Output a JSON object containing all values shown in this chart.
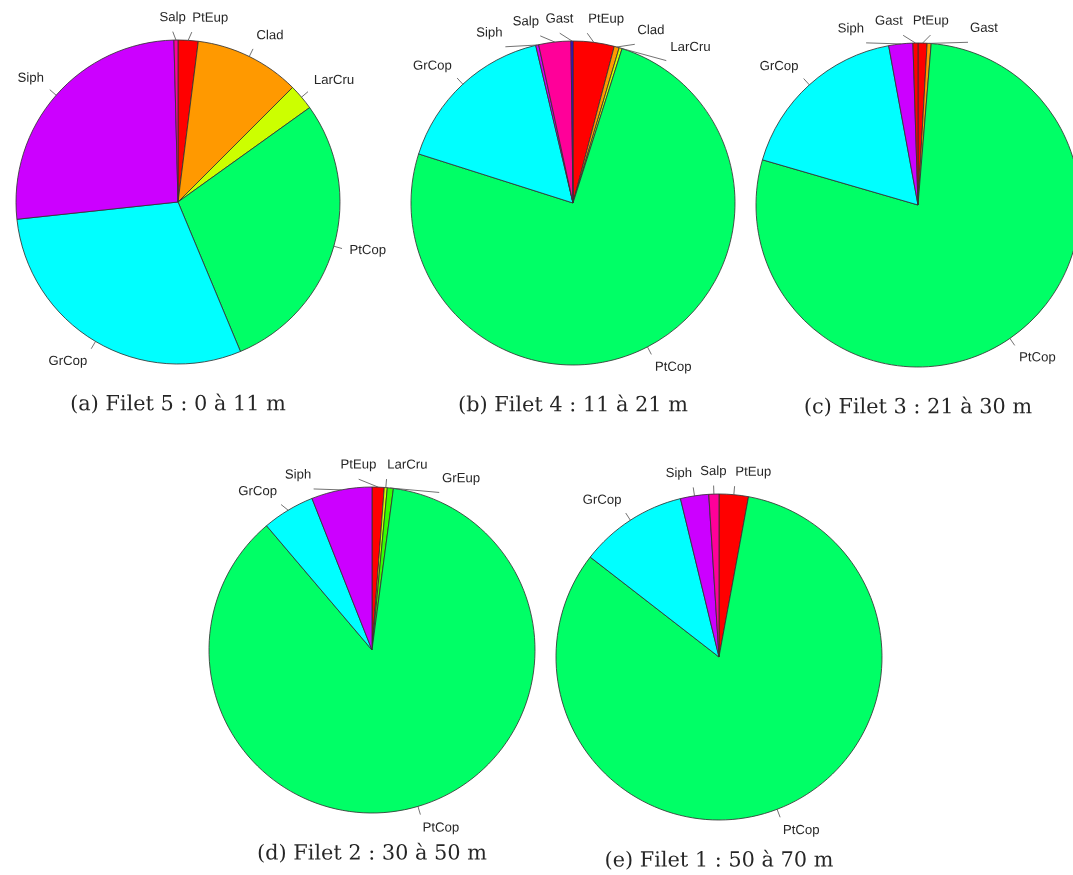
{
  "chart_data": [
    {
      "type": "pie",
      "title": "(a) Filet 5 : 0 à 11 m",
      "categories": [
        "PtEup",
        "Clad",
        "LarCru",
        "PtCop",
        "GrCop",
        "Siph",
        "Salp"
      ],
      "values": [
        2.0,
        10.5,
        2.6,
        28.6,
        29.6,
        26.3,
        0.4
      ],
      "colors": [
        "#ff0000",
        "#ff9900",
        "#ccff00",
        "#00ff66",
        "#00ffff",
        "#cc00ff",
        "#ff0099"
      ]
    },
    {
      "type": "pie",
      "title": "(b) Filet 4 : 11 à 21 m",
      "categories": [
        "PtEup",
        "Clad",
        "LarCru",
        "PtCop",
        "GrCop",
        "Siph",
        "Salp",
        "Gast"
      ],
      "values": [
        4.1,
        0.5,
        0.3,
        75.0,
        16.4,
        0.3,
        3.2,
        0.2
      ],
      "colors": [
        "#ff0000",
        "#ff9900",
        "#ccff00",
        "#00ff66",
        "#00ffff",
        "#cc00ff",
        "#ff0099",
        "#3300ff"
      ]
    },
    {
      "type": "pie",
      "title": "(c) Filet 3 : 21 à 30 m",
      "categories": [
        "PtEup",
        "Gast",
        "PtCop",
        "GrCop",
        "Siph",
        "Gast"
      ],
      "values": [
        0.9,
        0.4,
        78.2,
        17.6,
        2.4,
        0.5
      ],
      "colors": [
        "#ff0000",
        "#ff9900",
        "#00ff66",
        "#00ffff",
        "#cc00ff",
        "#ff0000"
      ]
    },
    {
      "type": "pie",
      "title": "(d) Filet 2 : 30 à 50 m",
      "categories": [
        "PtEup",
        "LarCru",
        "GrEup",
        "PtCop",
        "GrCop",
        "Siph"
      ],
      "values": [
        1.2,
        0.3,
        0.6,
        86.7,
        5.2,
        6.0
      ],
      "colors": [
        "#ff0000",
        "#ccff00",
        "#33ff00",
        "#00ff66",
        "#00ffff",
        "#cc00ff"
      ]
    },
    {
      "type": "pie",
      "title": "(e) Filet 1 : 50 à 70 m",
      "categories": [
        "PtEup",
        "PtCop",
        "GrCop",
        "Siph",
        "Salp"
      ],
      "values": [
        2.9,
        82.6,
        10.7,
        2.8,
        1.0
      ],
      "colors": [
        "#ff0000",
        "#00ff66",
        "#00ffff",
        "#cc00ff",
        "#ff0099"
      ]
    }
  ]
}
